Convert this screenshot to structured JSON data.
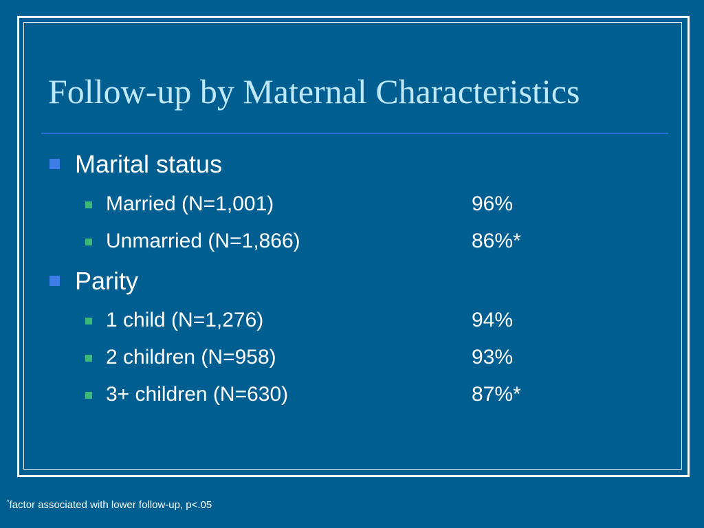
{
  "title": "Follow-up by Maternal Characteristics",
  "sections": [
    {
      "heading": "Marital status",
      "items": [
        {
          "label": "Married (N=1,001)",
          "value": "96%"
        },
        {
          "label": "Unmarried (N=1,866)",
          "value": "86%*"
        }
      ]
    },
    {
      "heading": "Parity",
      "items": [
        {
          "label": "1 child (N=1,276)",
          "value": "94%"
        },
        {
          "label": "2 children (N=958)",
          "value": "93%"
        },
        {
          "label": "3+ children (N=630)",
          "value": "87%*"
        }
      ]
    }
  ],
  "footnote": {
    "marker": "*",
    "text": "factor associated with lower follow-up, p<.05"
  },
  "colors": {
    "background": "#005e91",
    "title": "#bfe8f8",
    "bullet_level1": "#3d7de8",
    "bullet_level2": "#3cb878",
    "rule": "#2a6fd6"
  }
}
